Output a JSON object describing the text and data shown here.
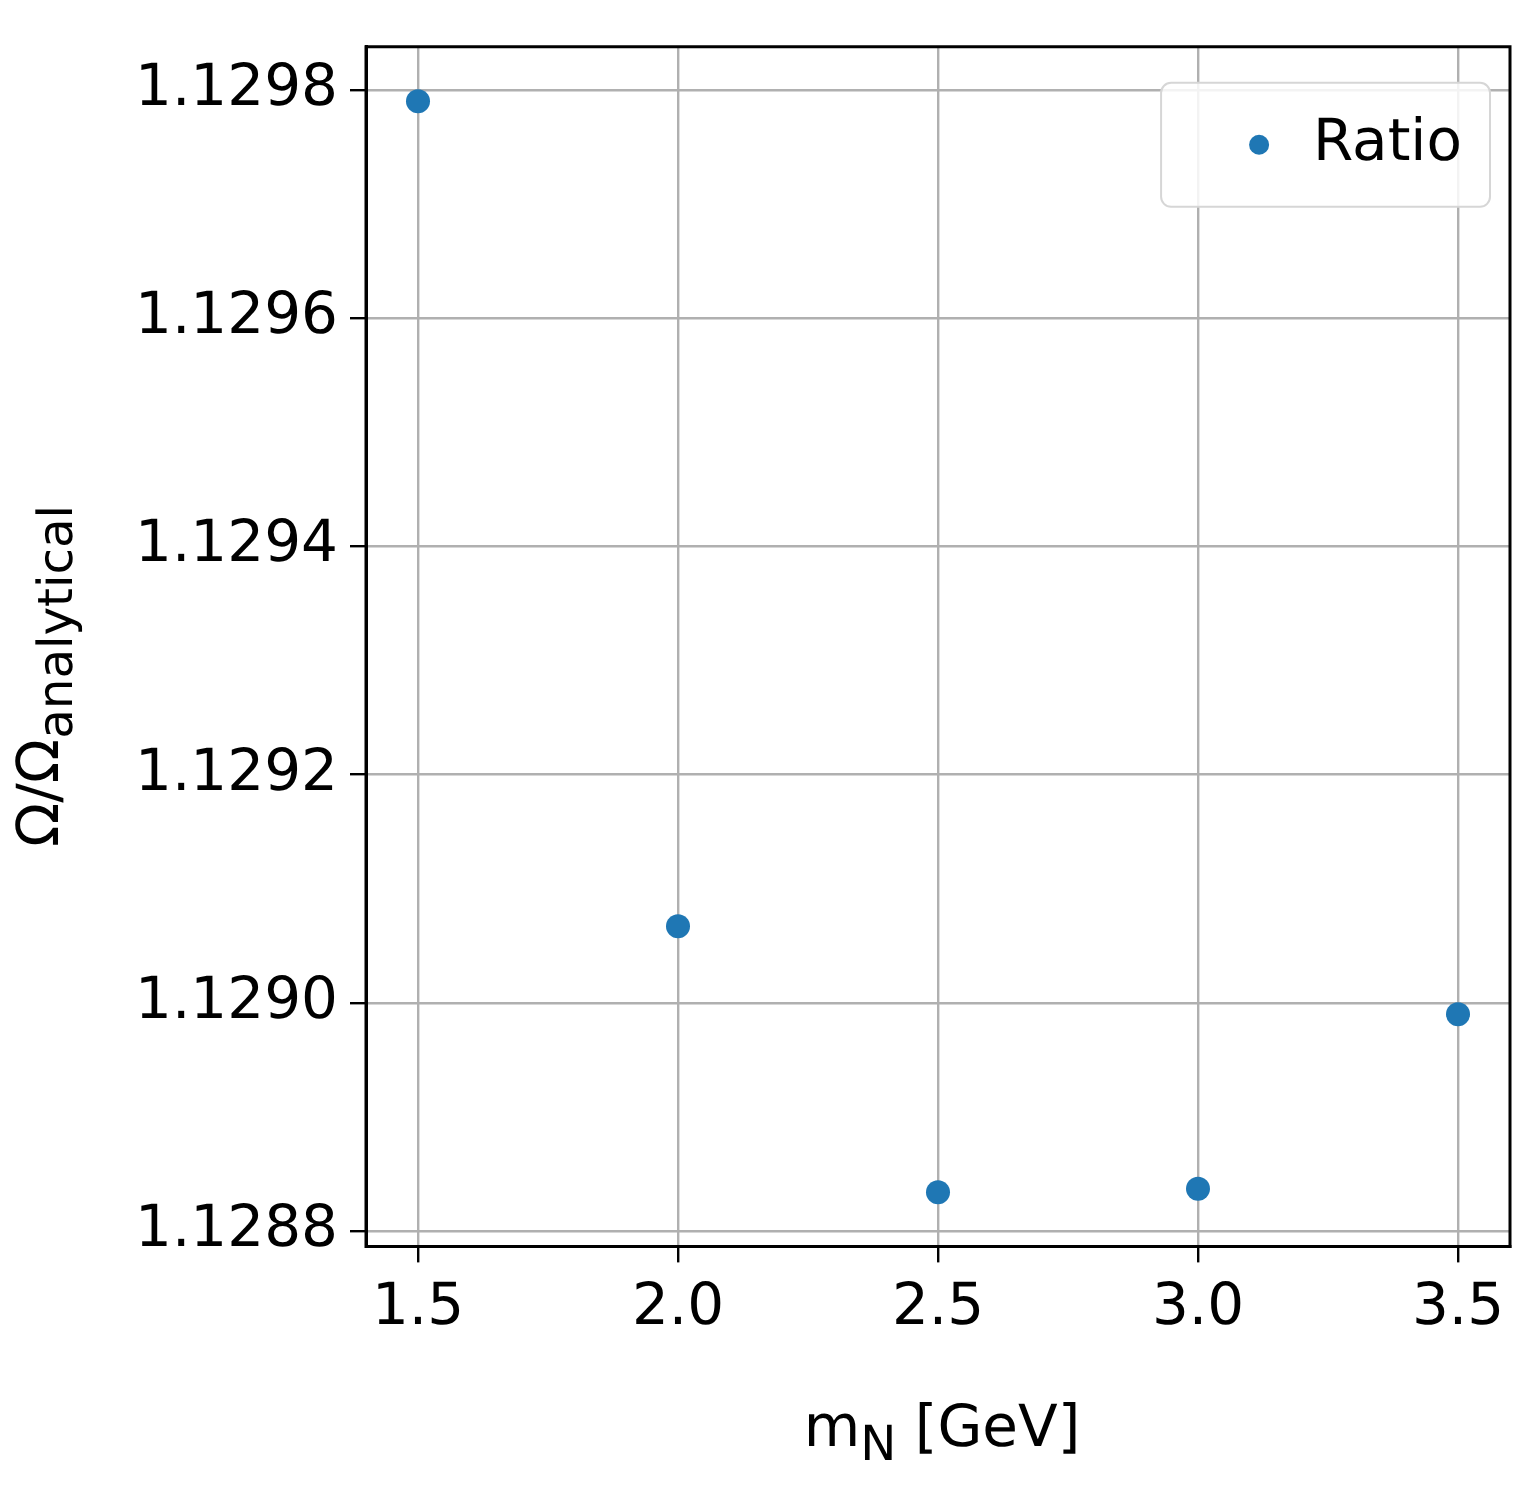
{
  "chart_data": {
    "type": "scatter",
    "xlabel": "m$_{N}$ [GeV]",
    "ylabel": "Ω/Ω$_{analytical}$",
    "x": [
      1.5,
      2.0,
      2.5,
      3.0,
      3.5
    ],
    "series": [
      {
        "name": "Ratio",
        "color": "#1f77b4",
        "values": [
          1.12979,
          1.129067,
          1.128834,
          1.128837,
          1.12899
        ]
      }
    ],
    "xlim": [
      1.4,
      3.6
    ],
    "xticks": [
      1.5,
      {
        "value": 2,
        "label": "2.0"
      },
      2.5,
      {
        "value": 3,
        "label": "3.0"
      },
      3.5
    ],
    "ylim": [
      1.1287865,
      1.1298378
    ],
    "yticks": [
      1.1288,
      {
        "value": 1.129,
        "label": "1.1290"
      },
      1.1292,
      1.1294,
      1.1296,
      1.1298
    ],
    "grid": true,
    "legend": "top right",
    "marker": "circle"
  }
}
